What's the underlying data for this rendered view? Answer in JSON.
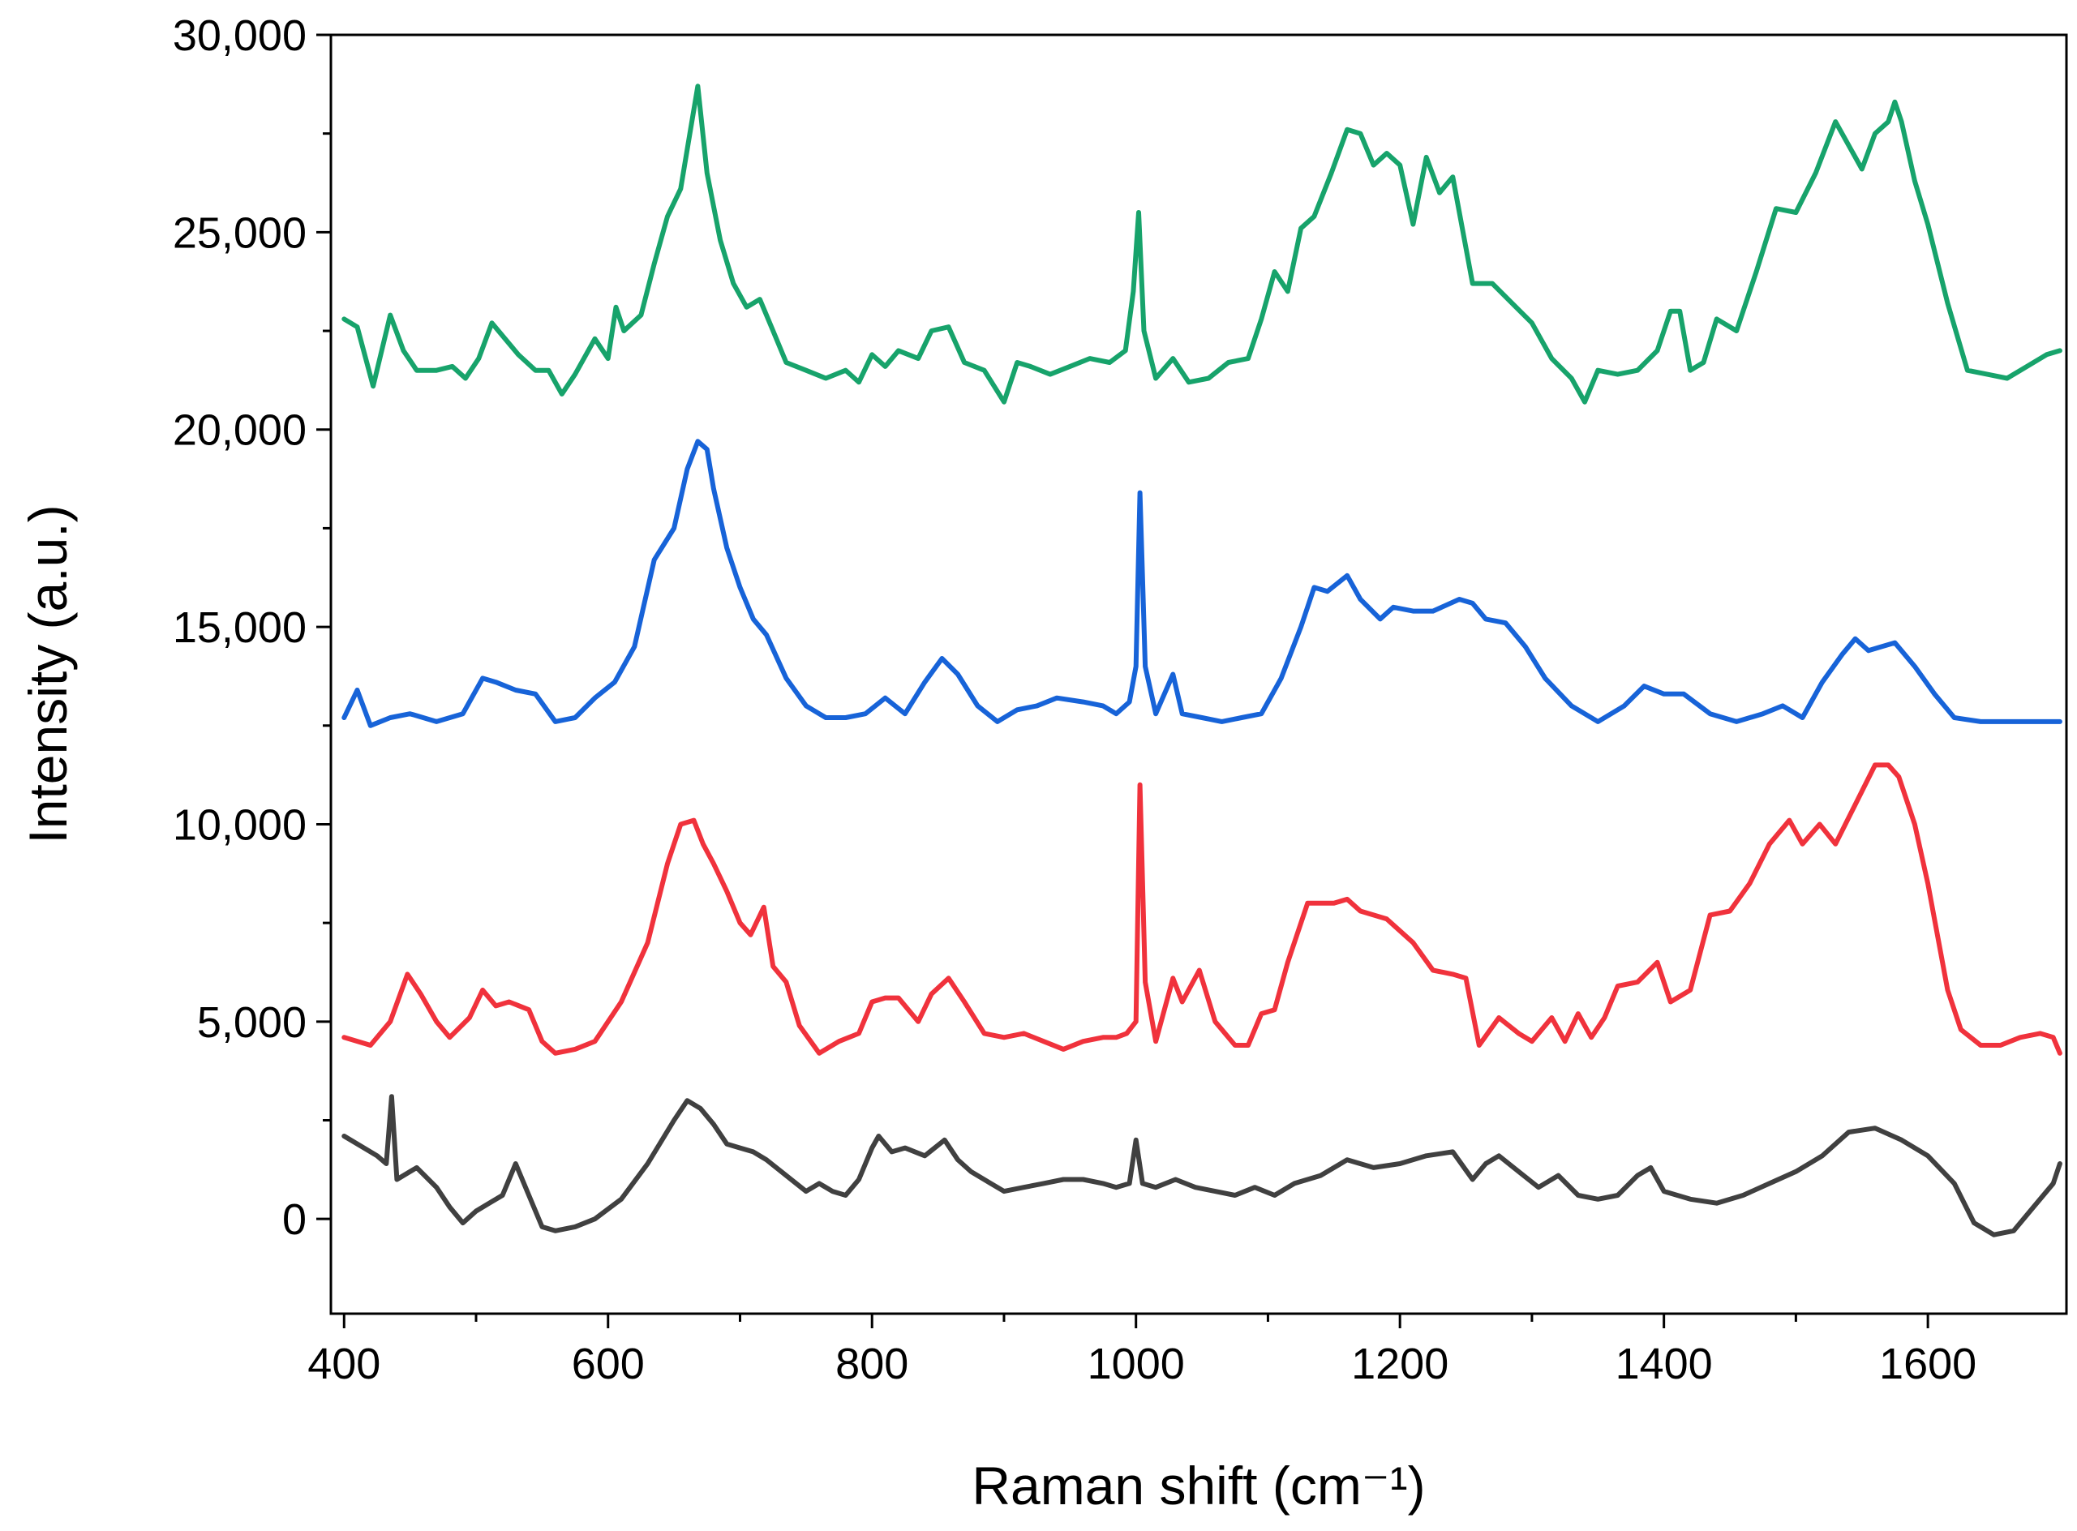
{
  "chart_data": {
    "type": "line",
    "title": "",
    "xlabel": "Raman shift (cm⁻¹)",
    "ylabel": "Intensity (a.u.)",
    "xlim": [
      390,
      1705
    ],
    "ylim": [
      -2400,
      30000
    ],
    "grid": false,
    "x_ticks": [
      400,
      600,
      800,
      1000,
      1200,
      1400,
      1600
    ],
    "x_tick_labels": [
      "400",
      "600",
      "800",
      "1000",
      "1200",
      "1400",
      "1600"
    ],
    "y_ticks": [
      0,
      5000,
      10000,
      15000,
      20000,
      25000,
      30000
    ],
    "y_tick_labels": [
      "0",
      "5,000",
      "10,000",
      "15,000",
      "20,000",
      "25,000",
      "30,000"
    ],
    "series": [
      {
        "name": "gray",
        "color": "#404040",
        "x": [
          400,
          415,
          425,
          432,
          436,
          440,
          455,
          470,
          480,
          490,
          500,
          510,
          520,
          530,
          540,
          550,
          560,
          575,
          590,
          610,
          630,
          650,
          660,
          670,
          680,
          690,
          700,
          710,
          720,
          735,
          750,
          760,
          770,
          780,
          790,
          800,
          805,
          815,
          825,
          840,
          855,
          865,
          875,
          890,
          900,
          915,
          930,
          945,
          960,
          975,
          985,
          995,
          1000,
          1005,
          1015,
          1030,
          1045,
          1060,
          1075,
          1090,
          1105,
          1120,
          1140,
          1160,
          1180,
          1200,
          1220,
          1240,
          1255,
          1265,
          1275,
          1290,
          1305,
          1320,
          1335,
          1350,
          1365,
          1380,
          1390,
          1400,
          1420,
          1440,
          1460,
          1480,
          1500,
          1520,
          1540,
          1560,
          1580,
          1600,
          1620,
          1635,
          1650,
          1665,
          1680,
          1695,
          1700
        ],
        "y": [
          2100,
          1800,
          1600,
          1400,
          3100,
          1000,
          1300,
          800,
          300,
          -100,
          200,
          400,
          600,
          1400,
          600,
          -200,
          -300,
          -200,
          0,
          500,
          1400,
          2500,
          3000,
          2800,
          2400,
          1900,
          1800,
          1700,
          1500,
          1100,
          700,
          900,
          700,
          600,
          1000,
          1800,
          2100,
          1700,
          1800,
          1600,
          2000,
          1500,
          1200,
          900,
          700,
          800,
          900,
          1000,
          1000,
          900,
          800,
          900,
          2000,
          900,
          800,
          1000,
          800,
          700,
          600,
          800,
          600,
          900,
          1100,
          1500,
          1300,
          1400,
          1600,
          1700,
          1000,
          1400,
          1600,
          1200,
          800,
          1100,
          600,
          500,
          600,
          1100,
          1300,
          700,
          500,
          400,
          600,
          900,
          1200,
          1600,
          2200,
          2300,
          2000,
          1600,
          900,
          -100,
          -400,
          -300,
          300,
          900,
          1400
        ]
      },
      {
        "name": "red",
        "color": "#f0323c",
        "x": [
          400,
          420,
          435,
          448,
          458,
          470,
          480,
          495,
          505,
          515,
          525,
          540,
          550,
          560,
          575,
          590,
          610,
          630,
          645,
          655,
          665,
          672,
          680,
          690,
          700,
          708,
          718,
          725,
          735,
          745,
          760,
          775,
          790,
          800,
          810,
          820,
          835,
          845,
          858,
          870,
          885,
          900,
          915,
          930,
          945,
          960,
          975,
          985,
          993,
          1000,
          1003,
          1007,
          1015,
          1028,
          1035,
          1048,
          1060,
          1075,
          1085,
          1095,
          1105,
          1115,
          1130,
          1150,
          1160,
          1170,
          1190,
          1210,
          1225,
          1240,
          1250,
          1260,
          1275,
          1290,
          1300,
          1315,
          1325,
          1335,
          1345,
          1355,
          1365,
          1380,
          1395,
          1405,
          1420,
          1435,
          1450,
          1465,
          1480,
          1495,
          1505,
          1518,
          1530,
          1545,
          1560,
          1570,
          1578,
          1590,
          1600,
          1615,
          1625,
          1640,
          1655,
          1670,
          1685,
          1695,
          1700
        ],
        "y": [
          4600,
          4400,
          5000,
          6200,
          5700,
          5000,
          4600,
          5100,
          5800,
          5400,
          5500,
          5300,
          4500,
          4200,
          4300,
          4500,
          5500,
          7000,
          9000,
          10000,
          10100,
          9500,
          9000,
          8300,
          7500,
          7200,
          7900,
          6400,
          6000,
          4900,
          4200,
          4500,
          4700,
          5500,
          5600,
          5600,
          5000,
          5700,
          6100,
          5500,
          4700,
          4600,
          4700,
          4500,
          4300,
          4500,
          4600,
          4600,
          4700,
          5000,
          11000,
          6000,
          4500,
          6100,
          5500,
          6300,
          5000,
          4400,
          4400,
          5200,
          5300,
          6500,
          8000,
          8000,
          8100,
          7800,
          7600,
          7000,
          6300,
          6200,
          6100,
          4400,
          5100,
          4700,
          4500,
          5100,
          4500,
          5200,
          4600,
          5100,
          5900,
          6000,
          6500,
          5500,
          5800,
          7700,
          7800,
          8500,
          9500,
          10100,
          9500,
          10000,
          9500,
          10500,
          11500,
          11500,
          11200,
          10000,
          8500,
          5800,
          4800,
          4400,
          4400,
          4600,
          4700,
          4600,
          4200
        ]
      },
      {
        "name": "blue",
        "color": "#1763d8",
        "x": [
          400,
          410,
          420,
          435,
          450,
          470,
          490,
          505,
          515,
          530,
          545,
          560,
          575,
          590,
          605,
          620,
          635,
          650,
          660,
          668,
          675,
          680,
          690,
          700,
          710,
          720,
          735,
          750,
          765,
          780,
          795,
          810,
          825,
          840,
          853,
          865,
          880,
          895,
          910,
          925,
          940,
          960,
          975,
          985,
          995,
          1000,
          1003,
          1007,
          1015,
          1028,
          1035,
          1050,
          1065,
          1080,
          1095,
          1110,
          1125,
          1135,
          1145,
          1160,
          1170,
          1185,
          1195,
          1210,
          1225,
          1245,
          1255,
          1265,
          1280,
          1295,
          1310,
          1330,
          1350,
          1370,
          1385,
          1400,
          1415,
          1435,
          1455,
          1475,
          1490,
          1505,
          1520,
          1535,
          1545,
          1555,
          1565,
          1575,
          1590,
          1605,
          1620,
          1640,
          1660,
          1680,
          1700
        ],
        "y": [
          12700,
          13400,
          12500,
          12700,
          12800,
          12600,
          12800,
          13700,
          13600,
          13400,
          13300,
          12600,
          12700,
          13200,
          13600,
          14500,
          16700,
          17500,
          19000,
          19700,
          19500,
          18500,
          17000,
          16000,
          15200,
          14800,
          13700,
          13000,
          12700,
          12700,
          12800,
          13200,
          12800,
          13600,
          14200,
          13800,
          13000,
          12600,
          12900,
          13000,
          13200,
          13100,
          13000,
          12800,
          13100,
          14000,
          18400,
          14000,
          12800,
          13800,
          12800,
          12700,
          12600,
          12700,
          12800,
          13700,
          15000,
          16000,
          15900,
          16300,
          15700,
          15200,
          15500,
          15400,
          15400,
          15700,
          15600,
          15200,
          15100,
          14500,
          13700,
          13000,
          12600,
          13000,
          13500,
          13300,
          13300,
          12800,
          12600,
          12800,
          13000,
          12700,
          13600,
          14300,
          14700,
          14400,
          14500,
          14600,
          14000,
          13300,
          12700,
          12600,
          12600,
          12600,
          12600
        ]
      },
      {
        "name": "green",
        "color": "#17a36b",
        "x": [
          400,
          410,
          422,
          435,
          445,
          455,
          470,
          482,
          492,
          502,
          512,
          522,
          532,
          545,
          555,
          565,
          575,
          590,
          600,
          606,
          612,
          625,
          635,
          645,
          655,
          662,
          668,
          675,
          685,
          695,
          705,
          715,
          725,
          735,
          750,
          765,
          780,
          790,
          800,
          810,
          820,
          835,
          845,
          858,
          870,
          885,
          900,
          910,
          920,
          935,
          950,
          965,
          980,
          992,
          998,
          1002,
          1006,
          1015,
          1028,
          1040,
          1055,
          1070,
          1085,
          1095,
          1105,
          1115,
          1125,
          1135,
          1148,
          1160,
          1170,
          1180,
          1190,
          1200,
          1210,
          1220,
          1230,
          1240,
          1255,
          1270,
          1285,
          1300,
          1315,
          1330,
          1340,
          1350,
          1365,
          1380,
          1395,
          1405,
          1412,
          1420,
          1430,
          1440,
          1455,
          1470,
          1485,
          1500,
          1515,
          1530,
          1540,
          1550,
          1560,
          1570,
          1575,
          1580,
          1590,
          1600,
          1615,
          1630,
          1645,
          1660,
          1675,
          1690,
          1700
        ],
        "y": [
          22800,
          22600,
          21100,
          22900,
          22000,
          21500,
          21500,
          21600,
          21300,
          21800,
          22700,
          22300,
          21900,
          21500,
          21500,
          20900,
          21400,
          22300,
          21800,
          23100,
          22500,
          22900,
          24200,
          25400,
          26100,
          27500,
          28700,
          26500,
          24800,
          23700,
          23100,
          23300,
          22500,
          21700,
          21500,
          21300,
          21500,
          21200,
          21900,
          21600,
          22000,
          21800,
          22500,
          22600,
          21700,
          21500,
          20700,
          21700,
          21600,
          21400,
          21600,
          21800,
          21700,
          22000,
          23500,
          25500,
          22500,
          21300,
          21800,
          21200,
          21300,
          21700,
          21800,
          22800,
          24000,
          23500,
          25100,
          25400,
          26500,
          27600,
          27500,
          26700,
          27000,
          26700,
          25200,
          26900,
          26000,
          26400,
          23700,
          23700,
          23200,
          22700,
          21800,
          21300,
          20700,
          21500,
          21400,
          21500,
          22000,
          23000,
          23000,
          21500,
          21700,
          22800,
          22500,
          24000,
          25600,
          25500,
          26500,
          27800,
          27200,
          26600,
          27500,
          27800,
          28300,
          27800,
          26300,
          25200,
          23200,
          21500,
          21400,
          21300,
          21600,
          21900,
          22000
        ]
      }
    ]
  }
}
